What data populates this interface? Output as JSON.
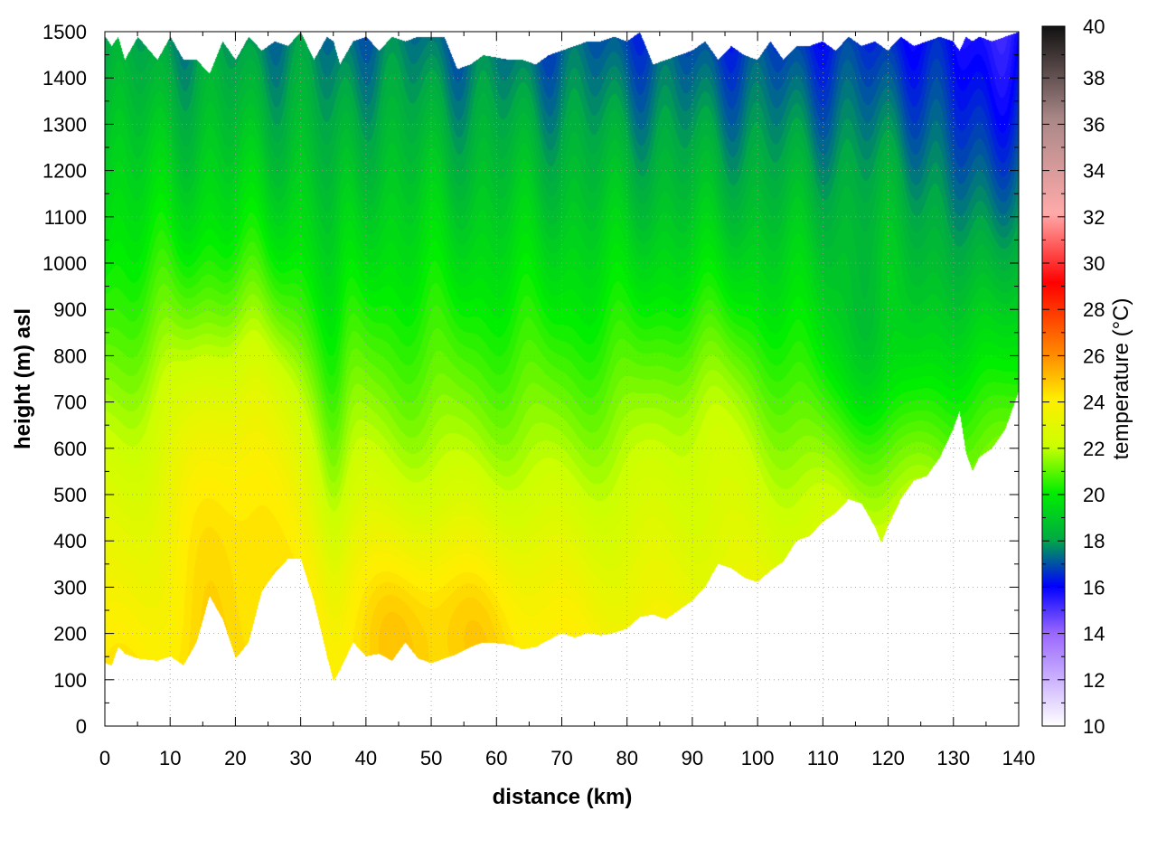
{
  "chart_data": {
    "type": "heatmap",
    "title": "",
    "xlabel": "distance (km)",
    "ylabel": "height (m) asl",
    "colorbar_label": "temperature (°C)",
    "xlim": [
      0,
      140
    ],
    "ylim": [
      0,
      1500
    ],
    "clim": [
      10,
      40
    ],
    "x_ticks": [
      0,
      10,
      20,
      30,
      40,
      50,
      60,
      70,
      80,
      90,
      100,
      110,
      120,
      130,
      140
    ],
    "y_ticks": [
      0,
      100,
      200,
      300,
      400,
      500,
      600,
      700,
      800,
      900,
      1000,
      1100,
      1200,
      1300,
      1400,
      1500
    ],
    "c_ticks": [
      10,
      12,
      14,
      16,
      18,
      20,
      22,
      24,
      26,
      28,
      30,
      32,
      34,
      36,
      38,
      40
    ],
    "grid": true,
    "colormap": [
      {
        "t": 10,
        "color": "#ffffff"
      },
      {
        "t": 14,
        "color": "#9966ff"
      },
      {
        "t": 16,
        "color": "#0000ff"
      },
      {
        "t": 18,
        "color": "#00aa44"
      },
      {
        "t": 20,
        "color": "#00ee00"
      },
      {
        "t": 22,
        "color": "#ccff00"
      },
      {
        "t": 24,
        "color": "#ffee00"
      },
      {
        "t": 26,
        "color": "#ff8800"
      },
      {
        "t": 29,
        "color": "#ff0000"
      },
      {
        "t": 32,
        "color": "#ffaaaa"
      },
      {
        "t": 36,
        "color": "#aa8888"
      },
      {
        "t": 40,
        "color": "#111111"
      }
    ],
    "terrain": {
      "x": [
        0,
        1,
        2,
        3,
        5,
        8,
        10,
        12,
        14,
        16,
        18,
        20,
        22,
        24,
        26,
        28,
        30,
        32,
        34,
        35,
        36,
        38,
        40,
        42,
        44,
        46,
        48,
        50,
        52,
        54,
        56,
        58,
        60,
        62,
        64,
        66,
        68,
        70,
        72,
        74,
        76,
        78,
        80,
        82,
        84,
        86,
        88,
        90,
        92,
        94,
        96,
        98,
        100,
        102,
        104,
        106,
        108,
        110,
        112,
        114,
        116,
        118,
        119,
        120,
        122,
        124,
        126,
        128,
        130,
        131,
        132,
        133,
        134,
        136,
        138,
        140
      ],
      "ground": [
        135,
        130,
        170,
        155,
        145,
        140,
        150,
        130,
        180,
        280,
        230,
        145,
        180,
        290,
        330,
        360,
        360,
        270,
        150,
        95,
        120,
        180,
        150,
        155,
        140,
        180,
        145,
        135,
        145,
        155,
        170,
        180,
        178,
        175,
        165,
        170,
        185,
        200,
        190,
        200,
        195,
        200,
        210,
        235,
        240,
        230,
        250,
        270,
        300,
        350,
        340,
        320,
        310,
        335,
        355,
        400,
        410,
        440,
        460,
        490,
        480,
        430,
        395,
        430,
        490,
        530,
        540,
        580,
        640,
        680,
        590,
        550,
        580,
        600,
        640,
        720
      ],
      "top": [
        1490,
        1470,
        1490,
        1440,
        1490,
        1440,
        1490,
        1440,
        1440,
        1410,
        1480,
        1440,
        1490,
        1460,
        1480,
        1470,
        1500,
        1440,
        1490,
        1480,
        1430,
        1480,
        1490,
        1460,
        1490,
        1480,
        1490,
        1490,
        1490,
        1420,
        1430,
        1450,
        1445,
        1440,
        1440,
        1430,
        1450,
        1460,
        1470,
        1480,
        1480,
        1490,
        1480,
        1500,
        1430,
        1440,
        1450,
        1460,
        1480,
        1440,
        1470,
        1450,
        1440,
        1480,
        1440,
        1470,
        1470,
        1480,
        1460,
        1490,
        1470,
        1480,
        1470,
        1460,
        1490,
        1470,
        1480,
        1490,
        1480,
        1460,
        1490,
        1480,
        1490,
        1480,
        1490,
        1500
      ]
    }
  }
}
